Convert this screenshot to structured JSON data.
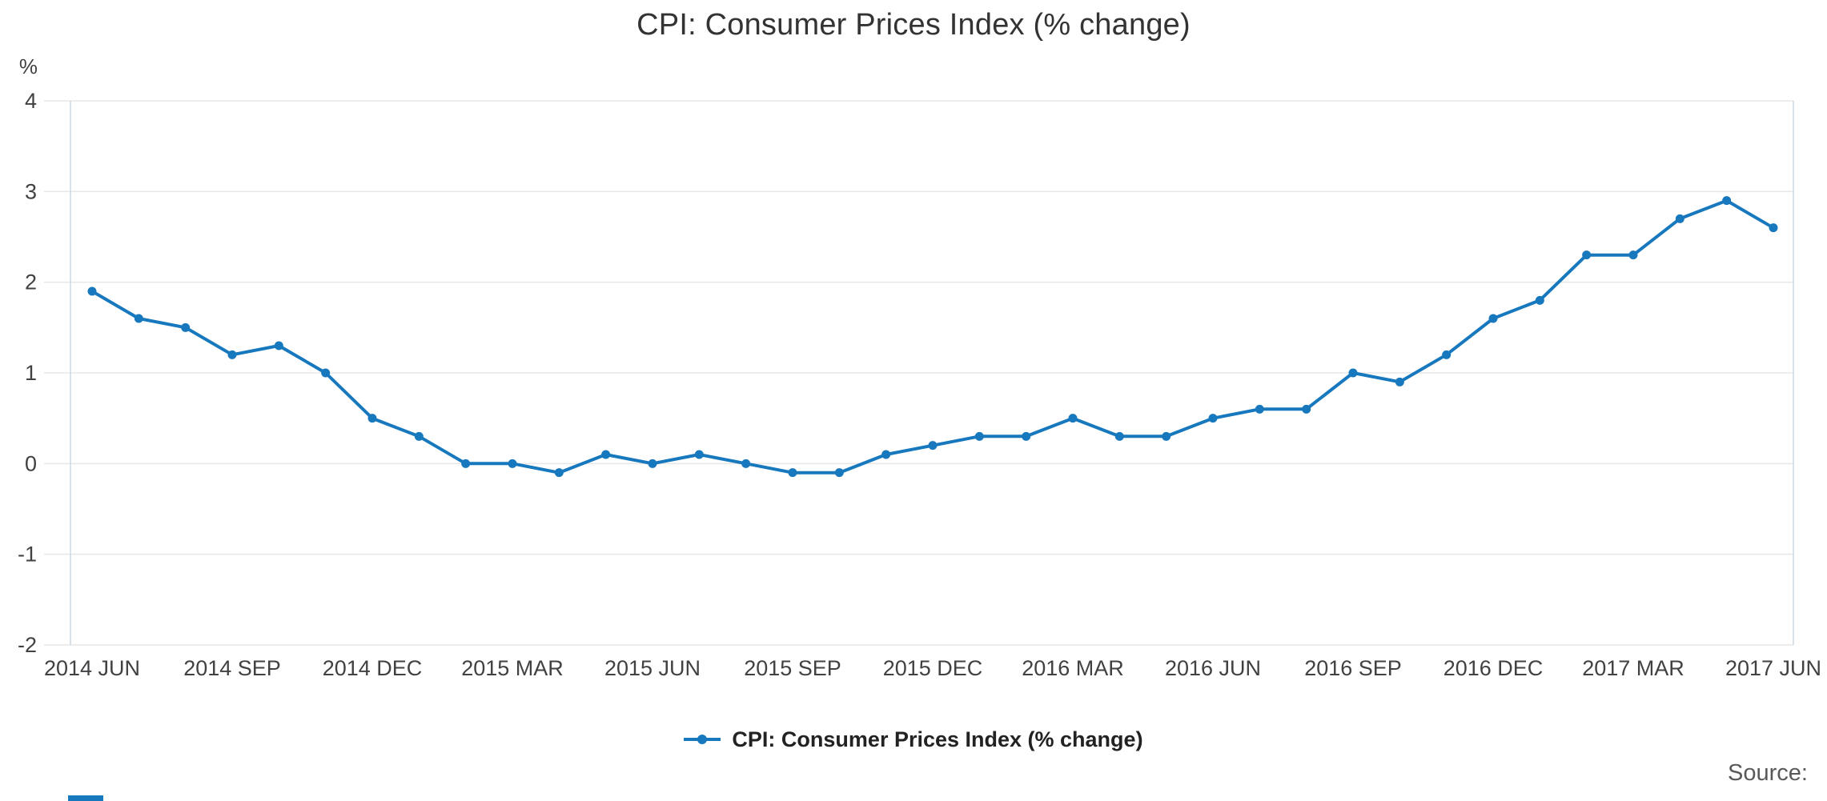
{
  "title": "CPI: Consumer Prices Index (% change)",
  "source_label": "Source:",
  "legend": {
    "label": "CPI: Consumer Prices Index (% change)"
  },
  "colors": {
    "line": "#1778be",
    "grid": "#e7e7e7",
    "plot_edge": "#ccd8e0",
    "axis_text": "#414042",
    "title_text": "#333333"
  },
  "chart_data": {
    "type": "line",
    "title": "CPI: Consumer Prices Index (% change)",
    "ylabel": "%",
    "xlabel": "",
    "ylim": [
      -2,
      4
    ],
    "yticks": [
      4,
      3,
      2,
      1,
      0,
      -1,
      -2
    ],
    "grid": "horizontal",
    "legend_position": "bottom",
    "x_tick_interval": 3,
    "x_tick_labels": [
      "2014 JUN",
      "2014 SEP",
      "2014 DEC",
      "2015 MAR",
      "2015 JUN",
      "2015 SEP",
      "2015 DEC",
      "2016 MAR",
      "2016 JUN",
      "2016 SEP",
      "2016 DEC",
      "2017 MAR",
      "2017 JUN"
    ],
    "categories": [
      "2014 JUN",
      "2014 JUL",
      "2014 AUG",
      "2014 SEP",
      "2014 OCT",
      "2014 NOV",
      "2014 DEC",
      "2015 JAN",
      "2015 FEB",
      "2015 MAR",
      "2015 APR",
      "2015 MAY",
      "2015 JUN",
      "2015 JUL",
      "2015 AUG",
      "2015 SEP",
      "2015 OCT",
      "2015 NOV",
      "2015 DEC",
      "2016 JAN",
      "2016 FEB",
      "2016 MAR",
      "2016 APR",
      "2016 MAY",
      "2016 JUN",
      "2016 JUL",
      "2016 AUG",
      "2016 SEP",
      "2016 OCT",
      "2016 NOV",
      "2016 DEC",
      "2017 JAN",
      "2017 FEB",
      "2017 MAR",
      "2017 APR",
      "2017 MAY",
      "2017 JUN"
    ],
    "series": [
      {
        "name": "CPI: Consumer Prices Index (% change)",
        "values": [
          1.9,
          1.6,
          1.5,
          1.2,
          1.3,
          1.0,
          0.5,
          0.3,
          0.0,
          0.0,
          -0.1,
          0.1,
          0.0,
          0.1,
          0.0,
          -0.1,
          -0.1,
          0.1,
          0.2,
          0.3,
          0.3,
          0.5,
          0.3,
          0.3,
          0.5,
          0.6,
          0.6,
          1.0,
          0.9,
          1.2,
          1.6,
          1.8,
          2.3,
          2.3,
          2.7,
          2.9,
          2.6
        ]
      }
    ]
  }
}
